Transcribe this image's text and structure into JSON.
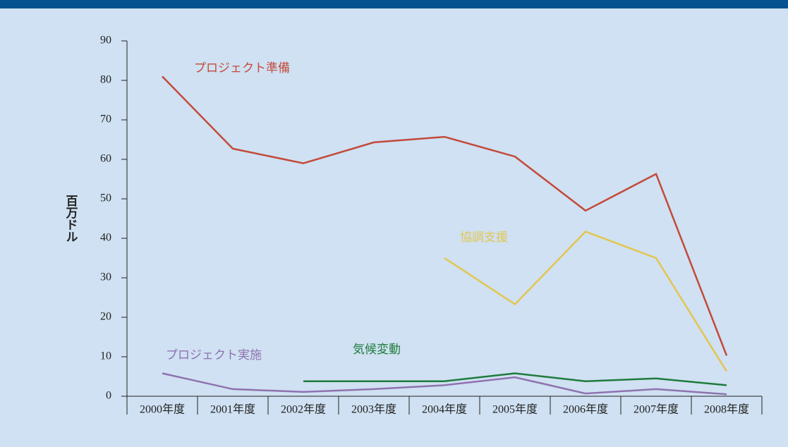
{
  "chart_data": {
    "type": "line",
    "y_label": "百万ドル",
    "categories": [
      "2000年度",
      "2001年度",
      "2002年度",
      "2003年度",
      "2004年度",
      "2005年度",
      "2006年度",
      "2007年度",
      "2008年度"
    ],
    "series": [
      {
        "name": "プロジェクト準備",
        "color": "#c4493a",
        "values": [
          81,
          62.7,
          59,
          64.3,
          65.7,
          60.7,
          47,
          56.3,
          10.3
        ]
      },
      {
        "name": "協調支援",
        "color": "#e3c650",
        "values": [
          null,
          null,
          null,
          null,
          35,
          23.3,
          41.7,
          35,
          6.3
        ]
      },
      {
        "name": "気候変動",
        "color": "#1e7b3c",
        "values": [
          null,
          null,
          3.8,
          3.8,
          3.8,
          5.8,
          3.8,
          4.5,
          2.8
        ]
      },
      {
        "name": "プロジェクト実施",
        "color": "#8f72b0",
        "values": [
          5.8,
          1.8,
          1.1,
          1.8,
          2.8,
          4.8,
          0.7,
          1.8,
          0.5
        ]
      }
    ],
    "ylim": [
      0,
      90
    ],
    "yticks": [
      0,
      10,
      20,
      30,
      40,
      50,
      60,
      70,
      80,
      90
    ]
  }
}
